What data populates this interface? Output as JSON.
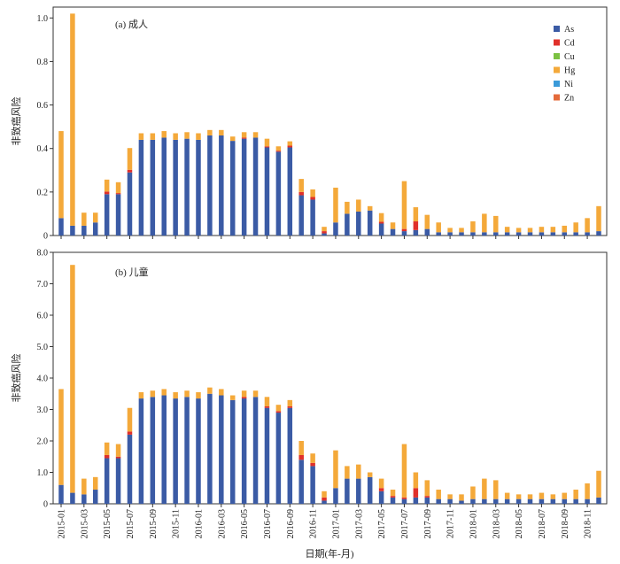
{
  "chart_data": [
    {
      "type": "bar",
      "stacked": true,
      "panel_label": "(a) 成人",
      "ylabel": "非致癌风险",
      "xlabel": "",
      "ylim": [
        0,
        1.05
      ],
      "yticks": [
        "0",
        "0.2",
        "0.4",
        "0.6",
        "0.8",
        "1.0"
      ],
      "ytick_values": [
        0,
        0.2,
        0.4,
        0.6,
        0.8,
        1.0
      ],
      "grid": false,
      "legend_position": "top-right",
      "colors": {
        "As": "#3b5ba5",
        "Cd": "#e0302a",
        "Cu": "#7bc142",
        "Hg": "#f4a93a",
        "Ni": "#3a9ad9",
        "Zn": "#e46a3a"
      },
      "series": [
        {
          "name": "As",
          "values": [
            0.08,
            0.045,
            0.045,
            0.06,
            0.19,
            0.19,
            0.29,
            0.44,
            0.44,
            0.45,
            0.44,
            0.445,
            0.44,
            0.46,
            0.46,
            0.435,
            0.445,
            0.45,
            0.405,
            0.385,
            0.405,
            0.185,
            0.165,
            0.01,
            0.06,
            0.1,
            0.11,
            0.115,
            0.055,
            0.03,
            0.02,
            0.025,
            0.03,
            0.015,
            0.015,
            0.015,
            0.015,
            0.015,
            0.015,
            0.015,
            0.015,
            0.015,
            0.015,
            0.015,
            0.015,
            0.015,
            0.015,
            0.02
          ]
        },
        {
          "name": "Cd",
          "values": [
            0,
            0,
            0,
            0,
            0.012,
            0.005,
            0.012,
            0,
            0,
            0,
            0,
            0,
            0,
            0,
            0,
            0,
            0.005,
            0,
            0.005,
            0.005,
            0.008,
            0.015,
            0.012,
            0.01,
            0,
            0,
            0,
            0,
            0.008,
            0,
            0.01,
            0.04,
            0,
            0,
            0,
            0,
            0,
            0,
            0,
            0,
            0,
            0,
            0,
            0,
            0,
            0,
            0,
            0
          ]
        },
        {
          "name": "Cu",
          "values": [
            0,
            0,
            0,
            0,
            0,
            0,
            0,
            0,
            0,
            0,
            0,
            0,
            0,
            0,
            0,
            0,
            0,
            0,
            0,
            0,
            0,
            0,
            0,
            0,
            0,
            0,
            0,
            0,
            0,
            0,
            0,
            0,
            0,
            0,
            0,
            0,
            0,
            0,
            0,
            0,
            0,
            0,
            0,
            0,
            0,
            0,
            0,
            0
          ]
        },
        {
          "name": "Hg",
          "values": [
            0.4,
            0.975,
            0.06,
            0.045,
            0.055,
            0.05,
            0.1,
            0.03,
            0.03,
            0.03,
            0.03,
            0.03,
            0.03,
            0.025,
            0.025,
            0.02,
            0.025,
            0.025,
            0.035,
            0.02,
            0.02,
            0.06,
            0.035,
            0.02,
            0.16,
            0.055,
            0.055,
            0.02,
            0.04,
            0.03,
            0.22,
            0.065,
            0.065,
            0.045,
            0.02,
            0.02,
            0.05,
            0.085,
            0.075,
            0.025,
            0.02,
            0.02,
            0.025,
            0.025,
            0.03,
            0.045,
            0.065,
            0.115
          ]
        },
        {
          "name": "Ni",
          "values": [
            0,
            0,
            0,
            0,
            0,
            0,
            0,
            0,
            0,
            0,
            0,
            0,
            0,
            0,
            0,
            0,
            0,
            0,
            0,
            0,
            0,
            0,
            0,
            0,
            0,
            0,
            0,
            0,
            0,
            0,
            0,
            0,
            0,
            0,
            0,
            0,
            0,
            0,
            0,
            0,
            0,
            0,
            0,
            0,
            0,
            0,
            0,
            0
          ]
        },
        {
          "name": "Zn",
          "values": [
            0,
            0,
            0,
            0,
            0,
            0,
            0,
            0,
            0,
            0,
            0,
            0,
            0,
            0,
            0,
            0,
            0,
            0,
            0,
            0,
            0,
            0,
            0,
            0,
            0,
            0,
            0,
            0,
            0,
            0,
            0,
            0,
            0,
            0,
            0,
            0,
            0,
            0,
            0,
            0,
            0,
            0,
            0,
            0,
            0,
            0,
            0,
            0
          ]
        }
      ]
    },
    {
      "type": "bar",
      "stacked": true,
      "panel_label": "(b) 儿童",
      "ylabel": "非致癌风险",
      "xlabel": "日期(年-月)",
      "ylim": [
        0,
        8.0
      ],
      "yticks": [
        "0",
        "1.0",
        "2.0",
        "3.0",
        "4.0",
        "5.0",
        "6.0",
        "7.0",
        "8.0"
      ],
      "ytick_values": [
        0,
        1,
        2,
        3,
        4,
        5,
        6,
        7,
        8
      ],
      "grid": false,
      "categories": [
        "2015-01",
        "2015-02",
        "2015-03",
        "2015-04",
        "2015-05",
        "2015-06",
        "2015-07",
        "2015-08",
        "2015-09",
        "2015-10",
        "2015-11",
        "2015-12",
        "2016-01",
        "2016-02",
        "2016-03",
        "2016-04",
        "2016-05",
        "2016-06",
        "2016-07",
        "2016-08",
        "2016-09",
        "2016-10",
        "2016-11",
        "2016-12",
        "2017-01",
        "2017-02",
        "2017-03",
        "2017-04",
        "2017-05",
        "2017-06",
        "2017-07",
        "2017-08",
        "2017-09",
        "2017-10",
        "2017-11",
        "2017-12",
        "2018-01",
        "2018-02",
        "2018-03",
        "2018-04",
        "2018-05",
        "2018-06",
        "2018-07",
        "2018-08",
        "2018-09",
        "2018-10",
        "2018-11",
        "2018-12"
      ],
      "tick_labels": [
        "2015-01",
        "2015-03",
        "2015-05",
        "2015-07",
        "2015-09",
        "2015-11",
        "2016-01",
        "2016-03",
        "2016-05",
        "2016-07",
        "2016-09",
        "2016-11",
        "2017-01",
        "2017-03",
        "2017-05",
        "2017-07",
        "2017-09",
        "2017-11",
        "2018-01",
        "2018-03",
        "2018-05",
        "2018-07",
        "2018-09",
        "2018-11"
      ],
      "colors": {
        "As": "#3b5ba5",
        "Cd": "#e0302a",
        "Cu": "#7bc142",
        "Hg": "#f4a93a",
        "Ni": "#3a9ad9",
        "Zn": "#e46a3a"
      },
      "series": [
        {
          "name": "As",
          "values": [
            0.6,
            0.35,
            0.3,
            0.45,
            1.45,
            1.45,
            2.2,
            3.35,
            3.4,
            3.45,
            3.35,
            3.4,
            3.35,
            3.5,
            3.45,
            3.3,
            3.35,
            3.4,
            3.05,
            2.9,
            3.05,
            1.4,
            1.2,
            0.1,
            0.5,
            0.8,
            0.8,
            0.85,
            0.4,
            0.2,
            0.15,
            0.2,
            0.2,
            0.15,
            0.15,
            0.1,
            0.15,
            0.15,
            0.15,
            0.15,
            0.15,
            0.15,
            0.15,
            0.15,
            0.15,
            0.15,
            0.15,
            0.2
          ]
        },
        {
          "name": "Cd",
          "values": [
            0,
            0,
            0,
            0,
            0.1,
            0.05,
            0.1,
            0,
            0,
            0,
            0,
            0,
            0,
            0,
            0,
            0,
            0.05,
            0,
            0.05,
            0.05,
            0.05,
            0.15,
            0.1,
            0.1,
            0,
            0,
            0,
            0,
            0.1,
            0.05,
            0.05,
            0.3,
            0.05,
            0,
            0,
            0,
            0,
            0,
            0,
            0,
            0,
            0,
            0,
            0,
            0,
            0,
            0,
            0
          ]
        },
        {
          "name": "Cu",
          "values": [
            0,
            0,
            0,
            0,
            0,
            0,
            0,
            0,
            0,
            0,
            0,
            0,
            0,
            0,
            0,
            0,
            0,
            0,
            0,
            0,
            0,
            0,
            0,
            0,
            0,
            0,
            0,
            0,
            0,
            0,
            0,
            0,
            0,
            0,
            0,
            0,
            0,
            0,
            0,
            0,
            0,
            0,
            0,
            0,
            0,
            0,
            0,
            0
          ]
        },
        {
          "name": "Hg",
          "values": [
            3.05,
            7.25,
            0.5,
            0.4,
            0.4,
            0.4,
            0.75,
            0.2,
            0.2,
            0.2,
            0.2,
            0.2,
            0.2,
            0.2,
            0.2,
            0.15,
            0.2,
            0.2,
            0.3,
            0.2,
            0.2,
            0.45,
            0.3,
            0.2,
            1.2,
            0.4,
            0.45,
            0.15,
            0.3,
            0.2,
            1.7,
            0.5,
            0.5,
            0.3,
            0.15,
            0.2,
            0.4,
            0.65,
            0.6,
            0.2,
            0.15,
            0.15,
            0.2,
            0.15,
            0.2,
            0.3,
            0.5,
            0.85
          ]
        },
        {
          "name": "Ni",
          "values": [
            0,
            0,
            0,
            0,
            0,
            0,
            0,
            0,
            0,
            0,
            0,
            0,
            0,
            0,
            0,
            0,
            0,
            0,
            0,
            0,
            0,
            0,
            0,
            0,
            0,
            0,
            0,
            0,
            0,
            0,
            0,
            0,
            0,
            0,
            0,
            0,
            0,
            0,
            0,
            0,
            0,
            0,
            0,
            0,
            0,
            0,
            0,
            0
          ]
        },
        {
          "name": "Zn",
          "values": [
            0,
            0,
            0,
            0,
            0,
            0,
            0,
            0,
            0,
            0,
            0,
            0,
            0,
            0,
            0,
            0,
            0,
            0,
            0,
            0,
            0,
            0,
            0,
            0,
            0,
            0,
            0,
            0,
            0,
            0,
            0,
            0,
            0,
            0,
            0,
            0,
            0,
            0,
            0,
            0,
            0,
            0,
            0,
            0,
            0,
            0,
            0,
            0
          ]
        }
      ]
    }
  ],
  "legend": [
    {
      "name": "As",
      "color": "#3b5ba5"
    },
    {
      "name": "Cd",
      "color": "#e0302a"
    },
    {
      "name": "Cu",
      "color": "#7bc142"
    },
    {
      "name": "Hg",
      "color": "#f4a93a"
    },
    {
      "name": "Ni",
      "color": "#3a9ad9"
    },
    {
      "name": "Zn",
      "color": "#e46a3a"
    }
  ]
}
